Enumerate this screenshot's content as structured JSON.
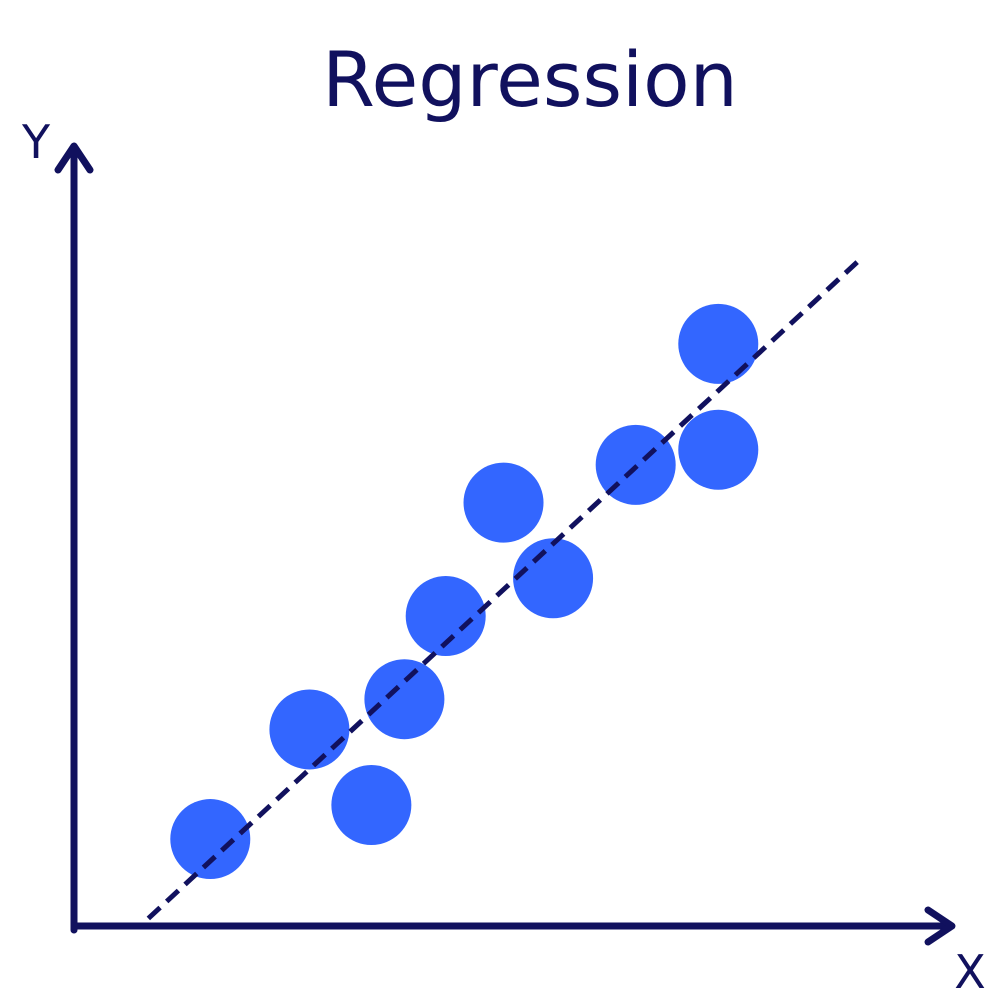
{
  "chart_data": {
    "type": "scatter",
    "title": "Regression",
    "xlabel": "X",
    "ylabel": "Y",
    "xlim": [
      0,
      10
    ],
    "ylim": [
      0,
      10
    ],
    "grid": false,
    "legend": "none",
    "points": [
      {
        "x": 1.65,
        "y": 1.15
      },
      {
        "x": 2.85,
        "y": 2.6
      },
      {
        "x": 3.6,
        "y": 1.6
      },
      {
        "x": 4.0,
        "y": 3.0
      },
      {
        "x": 4.5,
        "y": 4.1
      },
      {
        "x": 5.2,
        "y": 5.6
      },
      {
        "x": 5.8,
        "y": 4.6
      },
      {
        "x": 6.8,
        "y": 6.1
      },
      {
        "x": 7.8,
        "y": 6.3
      },
      {
        "x": 7.8,
        "y": 7.7
      }
    ],
    "fit_line": {
      "x": [
        0.9,
        9.5
      ],
      "y": [
        0.1,
        8.8
      ]
    },
    "colors": {
      "points": "#3366ff",
      "axes": "#11115e",
      "fit_line": "#11115e"
    }
  }
}
